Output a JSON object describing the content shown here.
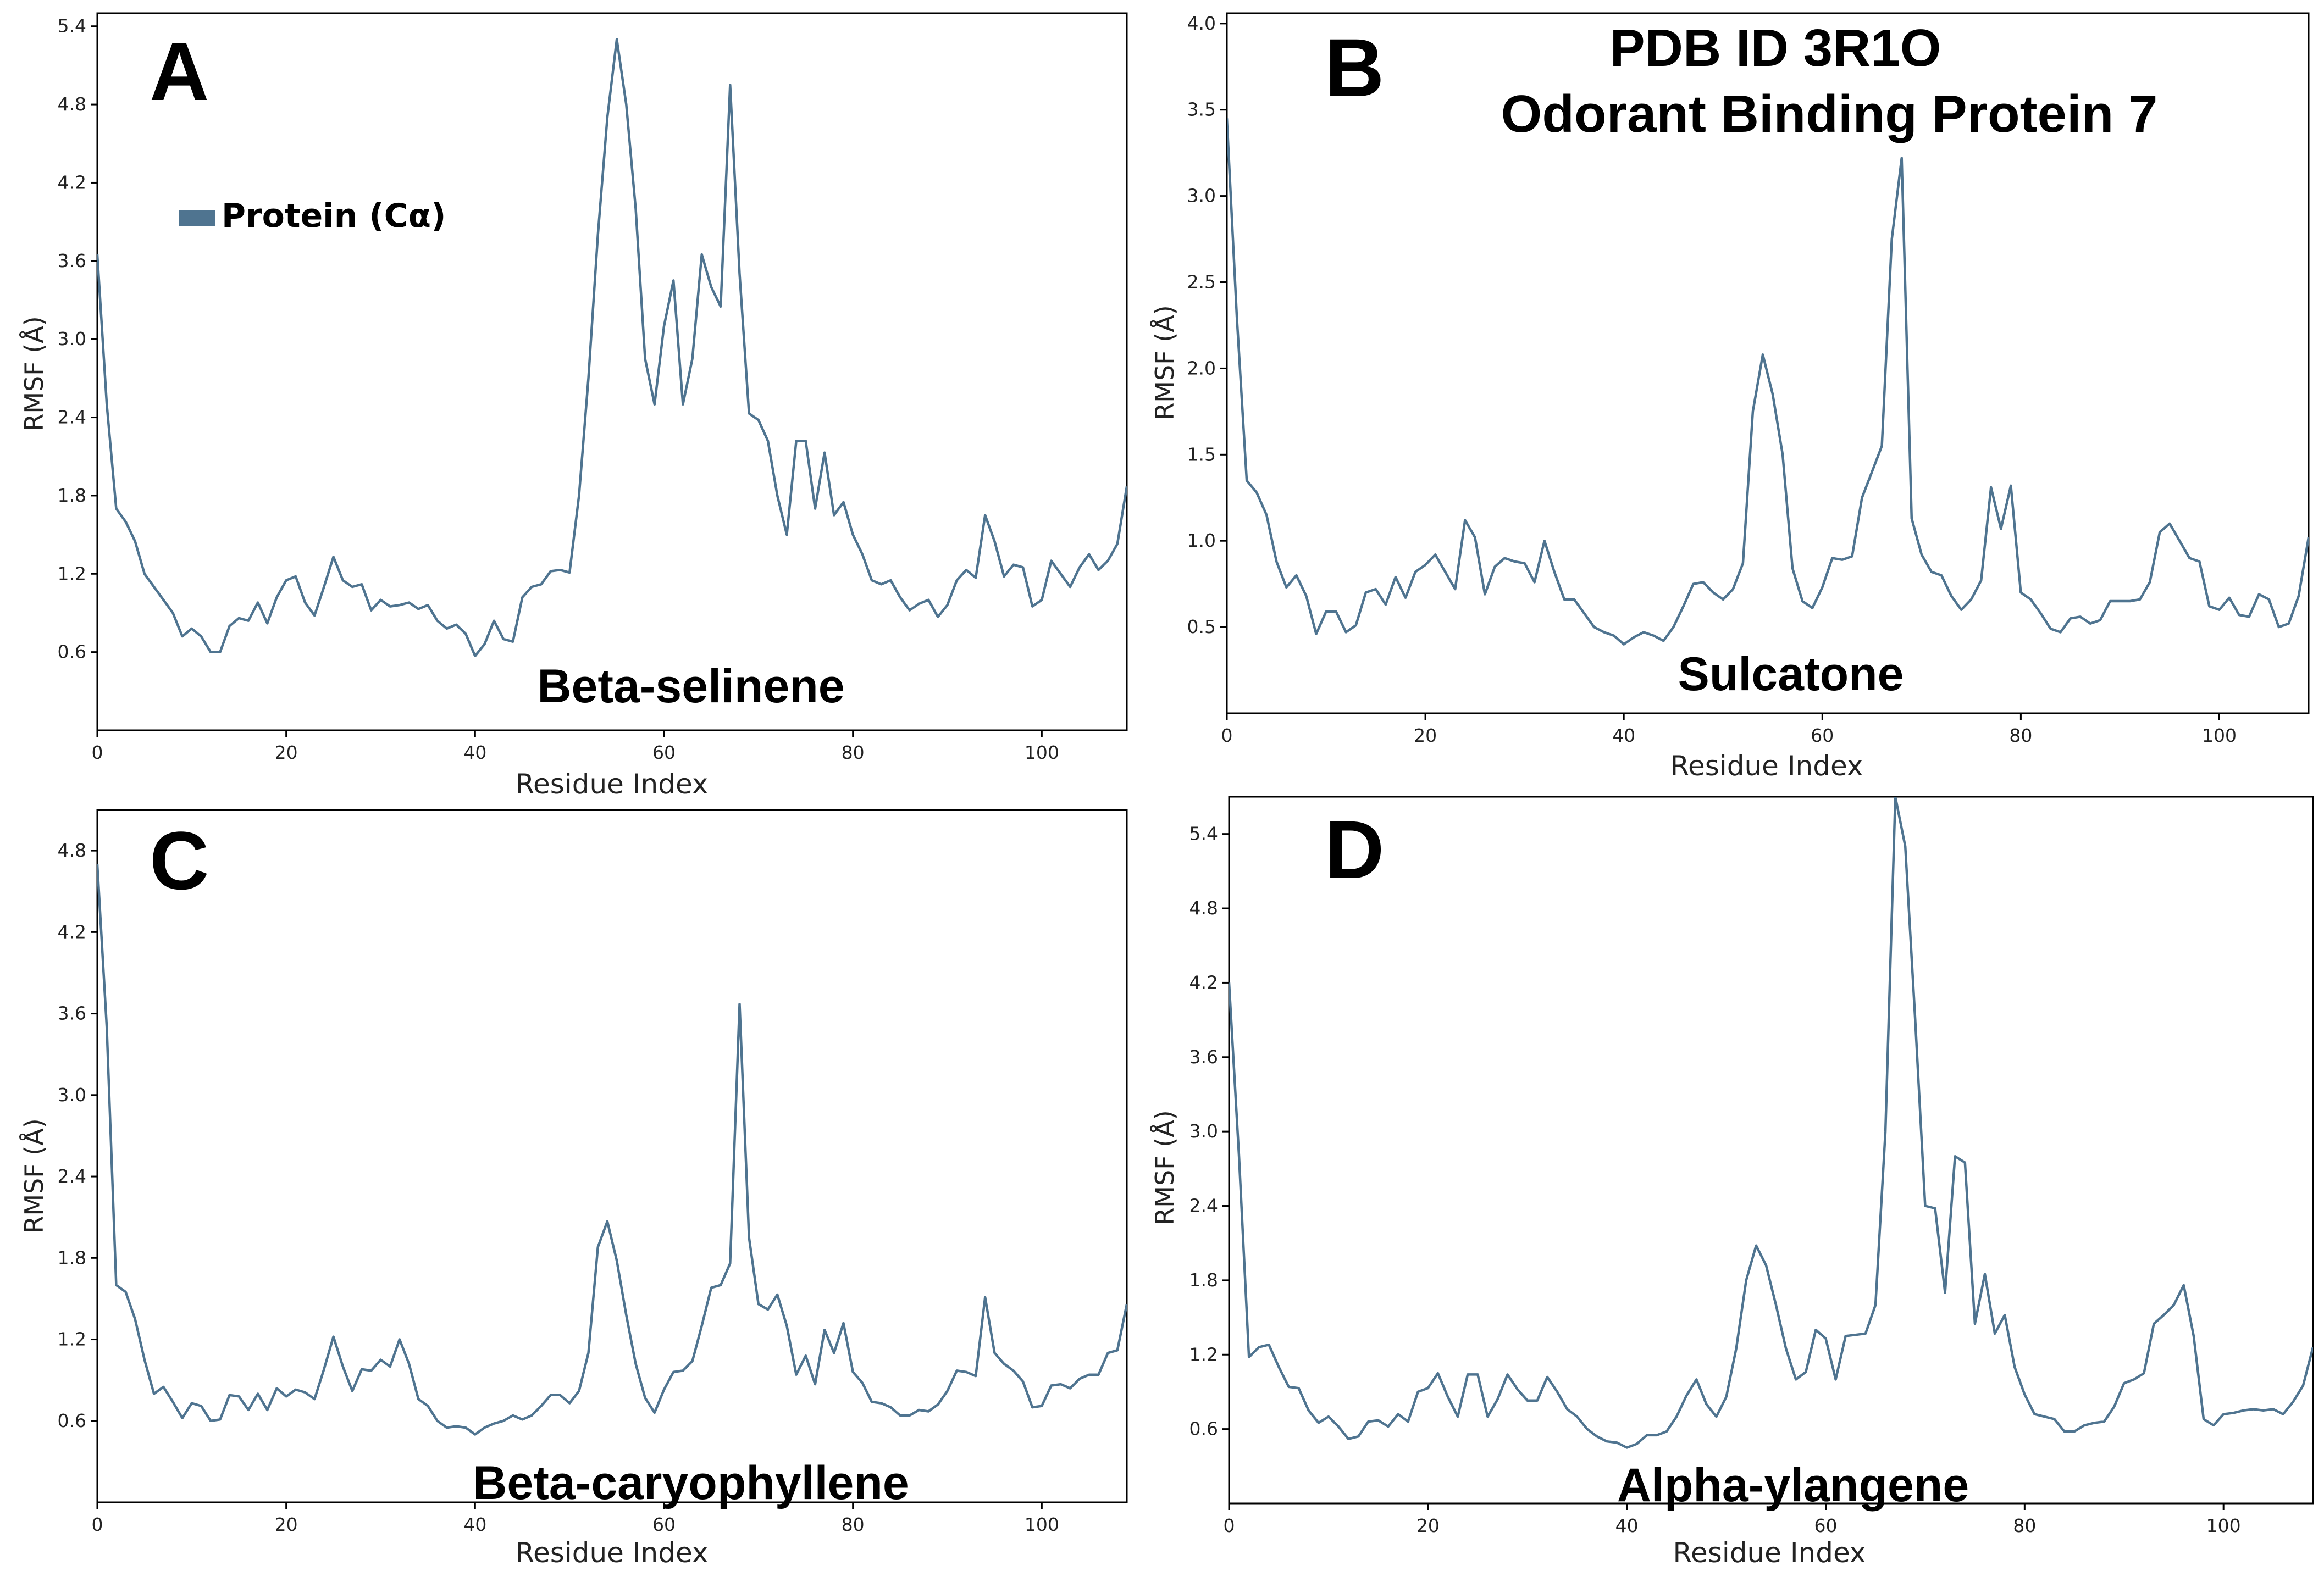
{
  "figure_heading": {
    "line1": "PDB ID  3R1O",
    "line2": "Odorant Binding Protein 7"
  },
  "legend": {
    "label": "Protein (Cα)",
    "color": "#4f7490"
  },
  "colors": {
    "line": "#4f7490",
    "axis": "#000000"
  },
  "chart_data": [
    {
      "panel": "A",
      "type": "line",
      "compound": "Beta-selinene",
      "xlabel": "Residue Index",
      "ylabel": "RMSF (Å)",
      "xlim": [
        0,
        109
      ],
      "ylim": [
        0,
        5.5
      ],
      "xticks": [
        0,
        20,
        40,
        60,
        80,
        100
      ],
      "yticks": [
        0.6,
        1.2,
        1.8,
        2.4,
        3.0,
        3.6,
        4.2,
        4.8,
        5.4
      ],
      "ytick_labels": [
        "0.6",
        "1.2",
        "1.8",
        "2.4",
        "3.0",
        "3.6",
        "4.2",
        "4.8",
        "5.4"
      ],
      "series": [
        {
          "name": "Protein (Cα)",
          "x": [
            0,
            1,
            2,
            3,
            4,
            5,
            6,
            7,
            8,
            9,
            10,
            11,
            12,
            13,
            14,
            15,
            16,
            17,
            18,
            19,
            20,
            21,
            22,
            23,
            24,
            25,
            26,
            27,
            28,
            29,
            30,
            31,
            32,
            33,
            34,
            35,
            36,
            37,
            38,
            39,
            40,
            41,
            42,
            43,
            44,
            45,
            46,
            47,
            48,
            49,
            50,
            51,
            52,
            53,
            54,
            55,
            56,
            57,
            58,
            59,
            60,
            61,
            62,
            63,
            64,
            65,
            66,
            67,
            68,
            69,
            70,
            71,
            72,
            73,
            74,
            75,
            76,
            77,
            78,
            79,
            80,
            81,
            82,
            83,
            84,
            85,
            86,
            87,
            88,
            89,
            90,
            91,
            92,
            93,
            94,
            95,
            96,
            97,
            98,
            99,
            100,
            101,
            102,
            103,
            104,
            105,
            106,
            107,
            108,
            109
          ],
          "values": [
            3.65,
            2.5,
            1.7,
            1.6,
            1.45,
            1.2,
            1.1,
            1.0,
            0.9,
            0.72,
            0.78,
            0.72,
            0.6,
            0.6,
            0.8,
            0.86,
            0.84,
            0.98,
            0.82,
            1.02,
            1.15,
            1.18,
            0.98,
            0.88,
            1.1,
            1.33,
            1.15,
            1.1,
            1.12,
            0.92,
            1.0,
            0.95,
            0.96,
            0.98,
            0.93,
            0.96,
            0.84,
            0.78,
            0.81,
            0.74,
            0.57,
            0.66,
            0.84,
            0.7,
            0.68,
            1.02,
            1.1,
            1.12,
            1.22,
            1.23,
            1.21,
            1.8,
            2.7,
            3.8,
            4.7,
            5.3,
            4.8,
            4.0,
            2.85,
            2.5,
            3.1,
            3.45,
            2.5,
            2.85,
            3.65,
            3.4,
            3.25,
            4.95,
            3.5,
            2.43,
            2.38,
            2.22,
            1.8,
            1.5,
            2.22,
            2.22,
            1.7,
            2.13,
            1.65,
            1.75,
            1.5,
            1.35,
            1.15,
            1.12,
            1.15,
            1.02,
            0.92,
            0.97,
            1.0,
            0.87,
            0.96,
            1.15,
            1.23,
            1.17,
            1.65,
            1.45,
            1.18,
            1.27,
            1.25,
            0.95,
            1.0,
            1.3,
            1.2,
            1.1,
            1.25,
            1.35,
            1.23,
            1.3,
            1.43,
            1.87
          ]
        }
      ]
    },
    {
      "panel": "B",
      "type": "line",
      "compound": "Sulcatone",
      "xlabel": "Residue Index",
      "ylabel": "RMSF (Å)",
      "xlim": [
        0,
        109
      ],
      "ylim": [
        0,
        4.06
      ],
      "xticks": [
        0,
        20,
        40,
        60,
        80,
        100
      ],
      "yticks": [
        0.5,
        1.0,
        1.5,
        2.0,
        2.5,
        3.0,
        3.5,
        4.0
      ],
      "ytick_labels": [
        "0.5",
        "1.0",
        "1.5",
        "2.0",
        "2.5",
        "3.0",
        "3.5",
        "4.0"
      ],
      "series": [
        {
          "name": "Protein (Cα)",
          "x": [
            0,
            1,
            2,
            3,
            4,
            5,
            6,
            7,
            8,
            9,
            10,
            11,
            12,
            13,
            14,
            15,
            16,
            17,
            18,
            19,
            20,
            21,
            22,
            23,
            24,
            25,
            26,
            27,
            28,
            29,
            30,
            31,
            32,
            33,
            34,
            35,
            36,
            37,
            38,
            39,
            40,
            41,
            42,
            43,
            44,
            45,
            46,
            47,
            48,
            49,
            50,
            51,
            52,
            53,
            54,
            55,
            56,
            57,
            58,
            59,
            60,
            61,
            62,
            63,
            64,
            65,
            66,
            67,
            68,
            69,
            70,
            71,
            72,
            73,
            74,
            75,
            76,
            77,
            78,
            79,
            80,
            81,
            82,
            83,
            84,
            85,
            86,
            87,
            88,
            89,
            90,
            91,
            92,
            93,
            94,
            95,
            96,
            97,
            98,
            99,
            100,
            101,
            102,
            103,
            104,
            105,
            106,
            107,
            108,
            109
          ],
          "values": [
            3.45,
            2.3,
            1.35,
            1.28,
            1.15,
            0.88,
            0.73,
            0.8,
            0.68,
            0.46,
            0.59,
            0.59,
            0.47,
            0.51,
            0.7,
            0.72,
            0.63,
            0.79,
            0.67,
            0.82,
            0.86,
            0.92,
            0.82,
            0.72,
            1.12,
            1.02,
            0.69,
            0.85,
            0.9,
            0.88,
            0.87,
            0.76,
            1.0,
            0.82,
            0.66,
            0.66,
            0.58,
            0.5,
            0.47,
            0.45,
            0.4,
            0.44,
            0.47,
            0.45,
            0.42,
            0.5,
            0.62,
            0.75,
            0.76,
            0.7,
            0.66,
            0.72,
            0.87,
            1.75,
            2.08,
            1.85,
            1.5,
            0.84,
            0.65,
            0.61,
            0.73,
            0.9,
            0.89,
            0.91,
            1.25,
            1.4,
            1.55,
            2.75,
            3.22,
            1.13,
            0.92,
            0.82,
            0.8,
            0.68,
            0.6,
            0.66,
            0.77,
            1.31,
            1.07,
            1.32,
            0.7,
            0.66,
            0.58,
            0.49,
            0.47,
            0.55,
            0.56,
            0.52,
            0.54,
            0.65,
            0.65,
            0.65,
            0.66,
            0.76,
            1.05,
            1.1,
            1.0,
            0.9,
            0.88,
            0.62,
            0.6,
            0.67,
            0.57,
            0.56,
            0.69,
            0.66,
            0.5,
            0.52,
            0.68,
            1.02
          ]
        }
      ]
    },
    {
      "panel": "C",
      "type": "line",
      "compound": "Beta-caryophyllene",
      "xlabel": "Residue Index",
      "ylabel": "RMSF (Å)",
      "xlim": [
        0,
        109
      ],
      "ylim": [
        0,
        5.1
      ],
      "xticks": [
        0,
        20,
        40,
        60,
        80,
        100
      ],
      "yticks": [
        0.6,
        1.2,
        1.8,
        2.4,
        3.0,
        3.6,
        4.2,
        4.8
      ],
      "ytick_labels": [
        "0.6",
        "1.2",
        "1.8",
        "2.4",
        "3.0",
        "3.6",
        "4.2",
        "4.8"
      ],
      "series": [
        {
          "name": "Protein (Cα)",
          "x": [
            0,
            1,
            2,
            3,
            4,
            5,
            6,
            7,
            8,
            9,
            10,
            11,
            12,
            13,
            14,
            15,
            16,
            17,
            18,
            19,
            20,
            21,
            22,
            23,
            24,
            25,
            26,
            27,
            28,
            29,
            30,
            31,
            32,
            33,
            34,
            35,
            36,
            37,
            38,
            39,
            40,
            41,
            42,
            43,
            44,
            45,
            46,
            47,
            48,
            49,
            50,
            51,
            52,
            53,
            54,
            55,
            56,
            57,
            58,
            59,
            60,
            61,
            62,
            63,
            64,
            65,
            66,
            67,
            68,
            69,
            70,
            71,
            72,
            73,
            74,
            75,
            76,
            77,
            78,
            79,
            80,
            81,
            82,
            83,
            84,
            85,
            86,
            87,
            88,
            89,
            90,
            91,
            92,
            93,
            94,
            95,
            96,
            97,
            98,
            99,
            100,
            101,
            102,
            103,
            104,
            105,
            106,
            107,
            108,
            109
          ],
          "values": [
            4.7,
            3.5,
            1.6,
            1.55,
            1.35,
            1.05,
            0.8,
            0.85,
            0.74,
            0.62,
            0.73,
            0.71,
            0.6,
            0.61,
            0.79,
            0.78,
            0.68,
            0.8,
            0.68,
            0.84,
            0.78,
            0.83,
            0.81,
            0.76,
            0.98,
            1.22,
            1.0,
            0.82,
            0.98,
            0.97,
            1.05,
            1.0,
            1.2,
            1.02,
            0.76,
            0.71,
            0.6,
            0.55,
            0.56,
            0.55,
            0.5,
            0.55,
            0.58,
            0.6,
            0.64,
            0.61,
            0.64,
            0.71,
            0.79,
            0.79,
            0.73,
            0.82,
            1.1,
            1.88,
            2.07,
            1.78,
            1.38,
            1.02,
            0.77,
            0.66,
            0.83,
            0.96,
            0.97,
            1.04,
            1.3,
            1.58,
            1.6,
            1.76,
            3.67,
            1.95,
            1.46,
            1.42,
            1.53,
            1.3,
            0.94,
            1.08,
            0.87,
            1.27,
            1.1,
            1.32,
            0.96,
            0.88,
            0.74,
            0.73,
            0.7,
            0.64,
            0.64,
            0.68,
            0.67,
            0.72,
            0.82,
            0.97,
            0.96,
            0.93,
            1.51,
            1.1,
            1.02,
            0.97,
            0.89,
            0.7,
            0.71,
            0.86,
            0.87,
            0.84,
            0.91,
            0.94,
            0.94,
            1.1,
            1.12,
            1.46
          ]
        }
      ]
    },
    {
      "panel": "D",
      "type": "line",
      "compound": "Alpha-ylangene",
      "xlabel": "Residue Index",
      "ylabel": "RMSF (Å)",
      "xlim": [
        0,
        109
      ],
      "ylim": [
        0,
        5.7
      ],
      "xticks": [
        0,
        20,
        40,
        60,
        80,
        100
      ],
      "yticks": [
        0.6,
        1.2,
        1.8,
        2.4,
        3.0,
        3.6,
        4.2,
        4.8,
        5.4
      ],
      "ytick_labels": [
        "0.6",
        "1.2",
        "1.8",
        "2.4",
        "3.0",
        "3.6",
        "4.2",
        "4.8",
        "5.4"
      ],
      "series": [
        {
          "name": "Protein (Cα)",
          "x": [
            0,
            1,
            2,
            3,
            4,
            5,
            6,
            7,
            8,
            9,
            10,
            11,
            12,
            13,
            14,
            15,
            16,
            17,
            18,
            19,
            20,
            21,
            22,
            23,
            24,
            25,
            26,
            27,
            28,
            29,
            30,
            31,
            32,
            33,
            34,
            35,
            36,
            37,
            38,
            39,
            40,
            41,
            42,
            43,
            44,
            45,
            46,
            47,
            48,
            49,
            50,
            51,
            52,
            53,
            54,
            55,
            56,
            57,
            58,
            59,
            60,
            61,
            62,
            63,
            64,
            65,
            66,
            67,
            68,
            69,
            70,
            71,
            72,
            73,
            74,
            75,
            76,
            77,
            78,
            79,
            80,
            81,
            82,
            83,
            84,
            85,
            86,
            87,
            88,
            89,
            90,
            91,
            92,
            93,
            94,
            95,
            96,
            97,
            98,
            99,
            100,
            101,
            102,
            103,
            104,
            105,
            106,
            107,
            108,
            109
          ],
          "values": [
            4.2,
            2.8,
            1.18,
            1.26,
            1.28,
            1.1,
            0.94,
            0.93,
            0.75,
            0.65,
            0.7,
            0.62,
            0.52,
            0.54,
            0.66,
            0.67,
            0.62,
            0.72,
            0.66,
            0.9,
            0.93,
            1.05,
            0.86,
            0.7,
            1.04,
            1.04,
            0.7,
            0.84,
            1.04,
            0.92,
            0.83,
            0.83,
            1.02,
            0.9,
            0.76,
            0.7,
            0.6,
            0.54,
            0.5,
            0.49,
            0.45,
            0.48,
            0.55,
            0.55,
            0.58,
            0.7,
            0.87,
            1.0,
            0.8,
            0.7,
            0.86,
            1.25,
            1.8,
            2.08,
            1.92,
            1.6,
            1.25,
            1.0,
            1.06,
            1.4,
            1.33,
            1.0,
            1.35,
            1.36,
            1.37,
            1.6,
            3.0,
            5.7,
            5.3,
            3.9,
            2.4,
            2.38,
            1.7,
            2.8,
            2.75,
            1.45,
            1.85,
            1.37,
            1.52,
            1.1,
            0.88,
            0.72,
            0.7,
            0.68,
            0.58,
            0.58,
            0.63,
            0.65,
            0.66,
            0.78,
            0.97,
            1.0,
            1.05,
            1.45,
            1.52,
            1.6,
            1.76,
            1.35,
            0.68,
            0.63,
            0.72,
            0.73,
            0.75,
            0.76,
            0.75,
            0.76,
            0.72,
            0.82,
            0.95,
            1.26
          ]
        }
      ]
    }
  ]
}
